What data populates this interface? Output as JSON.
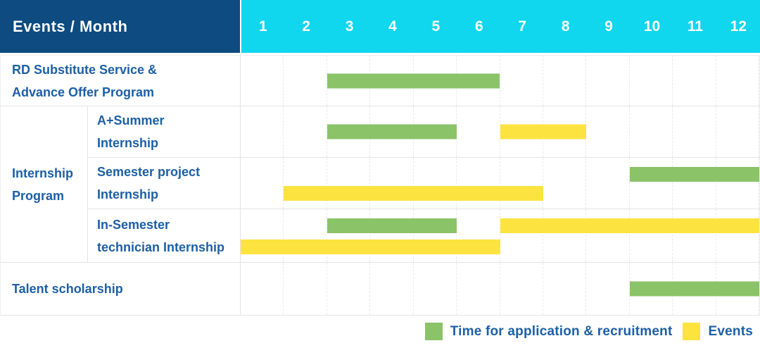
{
  "header": {
    "title": "Events / Month",
    "months": [
      "1",
      "2",
      "3",
      "4",
      "5",
      "6",
      "7",
      "8",
      "9",
      "10",
      "11",
      "12"
    ]
  },
  "row_labels": {
    "rd": [
      "RD Substitute Service &",
      "Advance Offer Program"
    ],
    "group": [
      "Internship",
      "Program"
    ],
    "a_summer": [
      "A+Summer",
      "Internship"
    ],
    "semester_project": [
      "Semester project",
      "Internship"
    ],
    "in_semester": [
      "In-Semester",
      "technician Internship"
    ],
    "talent": [
      "Talent scholarship"
    ]
  },
  "colors": {
    "header_navy": "#0d4b80",
    "header_cyan": "#10d6ee",
    "label_blue": "#1c5fa6",
    "bar_green": "#8bc368",
    "bar_yellow": "#fde340",
    "grid_line": "#e4e4e4"
  },
  "chart_data": {
    "type": "bar",
    "subtype": "gantt",
    "title": "Events / Month",
    "x_axis": {
      "label": "Month",
      "ticks": [
        "1",
        "2",
        "3",
        "4",
        "5",
        "6",
        "7",
        "8",
        "9",
        "10",
        "11",
        "12"
      ],
      "range": [
        1,
        12
      ]
    },
    "grid": true,
    "rows": [
      {
        "group": "",
        "label": "RD Substitute Service & Advance Offer Program",
        "bars": [
          {
            "series": "Time for application & recruitment",
            "color": "#8bc368",
            "start_month": 3,
            "end_month": 6,
            "lane": "center"
          }
        ]
      },
      {
        "group": "Internship Program",
        "label": "A+Summer Internship",
        "bars": [
          {
            "series": "Time for application & recruitment",
            "color": "#8bc368",
            "start_month": 3,
            "end_month": 5,
            "lane": "center"
          },
          {
            "series": "Events",
            "color": "#fde340",
            "start_month": 7,
            "end_month": 8,
            "lane": "center"
          }
        ]
      },
      {
        "group": "Internship Program",
        "label": "Semester project Internship",
        "bars": [
          {
            "series": "Time for application & recruitment",
            "color": "#8bc368",
            "start_month": 10,
            "end_month": 12,
            "lane": "top"
          },
          {
            "series": "Events",
            "color": "#fde340",
            "start_month": 2,
            "end_month": 7,
            "lane": "bottom"
          }
        ]
      },
      {
        "group": "Internship Program",
        "label": "In-Semester technician Internship",
        "bars": [
          {
            "series": "Time for application & recruitment",
            "color": "#8bc368",
            "start_month": 3,
            "end_month": 5,
            "lane": "top"
          },
          {
            "series": "Events",
            "color": "#fde340",
            "start_month": 7,
            "end_month": 12,
            "lane": "top"
          },
          {
            "series": "Events",
            "color": "#fde340",
            "start_month": 1,
            "end_month": 6,
            "lane": "bottom"
          }
        ]
      },
      {
        "group": "",
        "label": "Talent scholarship",
        "bars": [
          {
            "series": "Time for application & recruitment",
            "color": "#8bc368",
            "start_month": 10,
            "end_month": 12,
            "lane": "center"
          }
        ]
      }
    ],
    "legend": [
      {
        "label": "Time for application & recruitment",
        "color": "#8bc368"
      },
      {
        "label": "Events",
        "color": "#fde340"
      }
    ],
    "legend_position": "bottom-right"
  }
}
